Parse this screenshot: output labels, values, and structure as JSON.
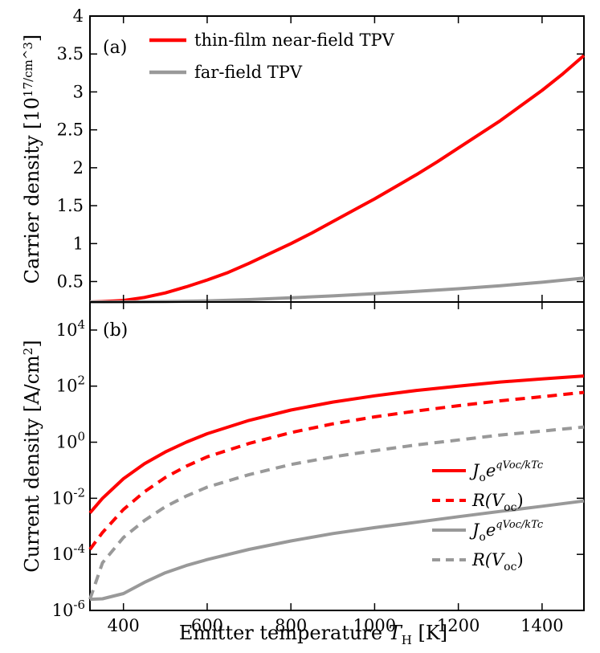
{
  "chart_data": [
    {
      "panel": "(a)",
      "type": "line",
      "title": "",
      "xlabel": "",
      "ylabel": "Carrier density [10^17/cm^3]",
      "xlim": [
        320,
        1500
      ],
      "ylim": [
        0.23,
        4.0
      ],
      "yticks": [
        "0.5",
        "1",
        "1.5",
        "2",
        "2.5",
        "3",
        "3.5",
        "4"
      ],
      "grid": false,
      "legend_position": "top-left",
      "series": [
        {
          "name": "thin-film near-field TPV",
          "color": "#ff0000",
          "style": "solid",
          "x": [
            320,
            350,
            400,
            450,
            500,
            550,
            600,
            650,
            700,
            750,
            800,
            850,
            900,
            950,
            1000,
            1050,
            1100,
            1150,
            1200,
            1250,
            1300,
            1350,
            1400,
            1450,
            1500
          ],
          "y": [
            0.23,
            0.235,
            0.25,
            0.29,
            0.35,
            0.43,
            0.52,
            0.62,
            0.74,
            0.87,
            1.0,
            1.14,
            1.29,
            1.44,
            1.59,
            1.75,
            1.91,
            2.08,
            2.26,
            2.44,
            2.62,
            2.82,
            3.02,
            3.24,
            3.48
          ]
        },
        {
          "name": "far-field TPV",
          "color": "#999999",
          "style": "solid",
          "x": [
            320,
            400,
            500,
            600,
            700,
            800,
            900,
            1000,
            1100,
            1200,
            1300,
            1400,
            1500
          ],
          "y": [
            0.23,
            0.231,
            0.235,
            0.245,
            0.262,
            0.285,
            0.31,
            0.34,
            0.37,
            0.405,
            0.445,
            0.49,
            0.545
          ]
        }
      ]
    },
    {
      "panel": "(b)",
      "type": "line",
      "title": "",
      "xlabel": "Emitter temperature T_H [K]",
      "ylabel": "Current density [A/cm^2]",
      "xlim": [
        320,
        1500
      ],
      "ylim": [
        1e-06,
        100000.0
      ],
      "yscale": "log",
      "xticks": [
        "400",
        "600",
        "800",
        "1000",
        "1200",
        "1400"
      ],
      "yticks": [
        "10^-6",
        "10^-4",
        "10^-2",
        "10^0",
        "10^2",
        "10^4"
      ],
      "grid": false,
      "legend_position": "bottom-right",
      "series": [
        {
          "legend_label": "Jo e^(qVoc/kTc)",
          "color": "#ff0000",
          "style": "solid",
          "x": [
            320,
            350,
            400,
            450,
            500,
            550,
            600,
            700,
            800,
            900,
            1000,
            1100,
            1200,
            1300,
            1400,
            1500
          ],
          "y": [
            0.003,
            0.01,
            0.05,
            0.17,
            0.45,
            1.0,
            2.0,
            6.0,
            14,
            27,
            45,
            70,
            100,
            140,
            180,
            230
          ]
        },
        {
          "legend_label": "R(Voc)",
          "color": "#ff0000",
          "style": "dashed",
          "x": [
            320,
            350,
            400,
            450,
            500,
            550,
            600,
            700,
            800,
            900,
            1000,
            1100,
            1200,
            1300,
            1400,
            1500
          ],
          "y": [
            0.00015,
            0.0006,
            0.004,
            0.017,
            0.055,
            0.14,
            0.3,
            0.9,
            2.2,
            4.5,
            8,
            13,
            20,
            30,
            42,
            60
          ]
        },
        {
          "legend_label": "Jo e^(qVoc/kTc)",
          "color": "#999999",
          "style": "solid",
          "x": [
            320,
            350,
            400,
            450,
            500,
            550,
            600,
            700,
            800,
            900,
            1000,
            1100,
            1200,
            1300,
            1400,
            1500
          ],
          "y": [
            2.5e-06,
            2.6e-06,
            4e-06,
            1e-05,
            2.2e-05,
            4e-05,
            6.5e-05,
            0.00015,
            0.0003,
            0.00055,
            0.0009,
            0.0014,
            0.0022,
            0.0034,
            0.0052,
            0.008
          ]
        },
        {
          "legend_label": "R(Voc)",
          "color": "#999999",
          "style": "dashed",
          "x": [
            320,
            350,
            400,
            450,
            500,
            550,
            600,
            700,
            800,
            900,
            1000,
            1100,
            1200,
            1300,
            1400,
            1500
          ],
          "y": [
            2.5e-06,
            5e-05,
            0.0004,
            0.0016,
            0.005,
            0.012,
            0.025,
            0.07,
            0.16,
            0.3,
            0.5,
            0.8,
            1.2,
            1.8,
            2.5,
            3.5
          ]
        }
      ]
    }
  ]
}
